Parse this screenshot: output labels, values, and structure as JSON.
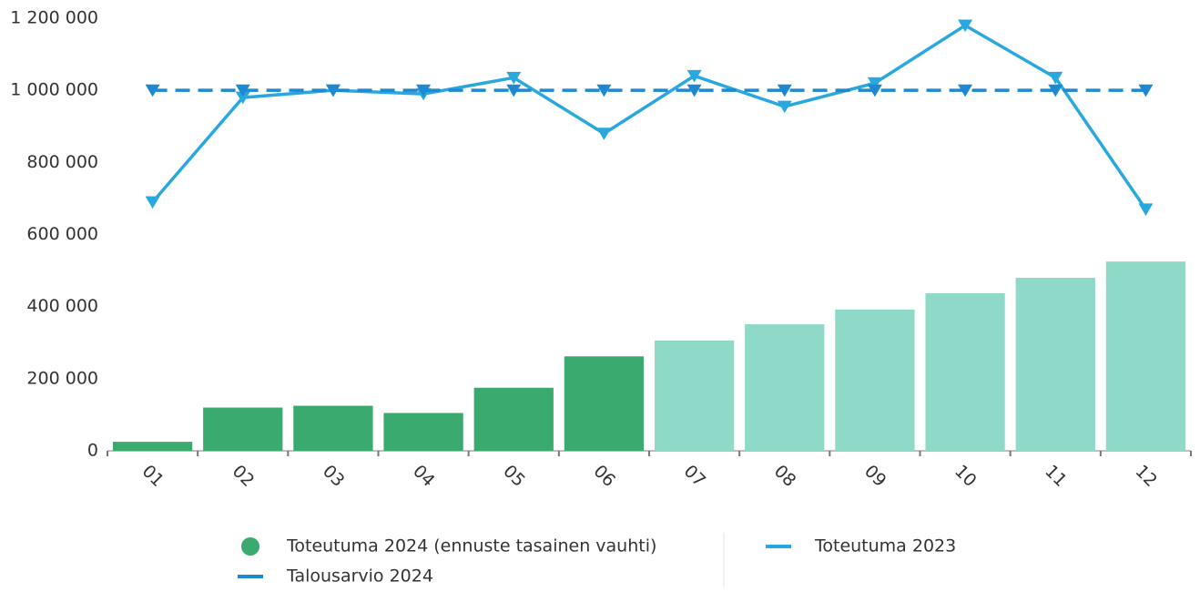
{
  "chart_data": {
    "type": "bar",
    "categories": [
      "01",
      "02",
      "03",
      "04",
      "05",
      "06",
      "07",
      "08",
      "09",
      "10",
      "11",
      "12"
    ],
    "series": [
      {
        "name": "Toteutuma 2024 (ennuste tasainen vauhti)",
        "type": "bar",
        "color": "#3aaa6e",
        "colors": [
          "#3aaa6e",
          "#3aaa6e",
          "#3aaa6e",
          "#3aaa6e",
          "#3aaa6e",
          "#3aaa6e",
          "#8fd9c8",
          "#8fd9c8",
          "#8fd9c8",
          "#8fd9c8",
          "#8fd9c8",
          "#8fd9c8"
        ],
        "values": [
          25000,
          120000,
          125000,
          105000,
          175000,
          262000,
          306000,
          351000,
          392000,
          437000,
          480000,
          525000
        ]
      },
      {
        "name": "Toteutuma 2023",
        "type": "line",
        "color": "#29a8e0",
        "dashed": false,
        "marker": "triangle-down",
        "values": [
          690000,
          980000,
          1000000,
          990000,
          1035000,
          880000,
          1040000,
          955000,
          1020000,
          1180000,
          1035000,
          670000
        ]
      },
      {
        "name": "Talousarvio 2024",
        "type": "line",
        "color": "#1e88d0",
        "dashed": true,
        "marker": "triangle-down",
        "values": [
          1000000,
          1000000,
          1000000,
          1000000,
          1000000,
          1000000,
          1000000,
          1000000,
          1000000,
          1000000,
          1000000,
          1000000
        ]
      }
    ],
    "ylim": [
      0,
      1200000
    ],
    "yticks": [
      0,
      {
        "value": 200000,
        "label": "200 000"
      },
      {
        "value": 400000,
        "label": "400 000"
      },
      {
        "value": 600000,
        "label": "600 000"
      },
      {
        "value": 800000,
        "label": "800 000"
      },
      {
        "value": 1000000,
        "label": "1 000 000"
      },
      {
        "value": 1200000,
        "label": "1 200 000"
      }
    ],
    "grid": false
  }
}
